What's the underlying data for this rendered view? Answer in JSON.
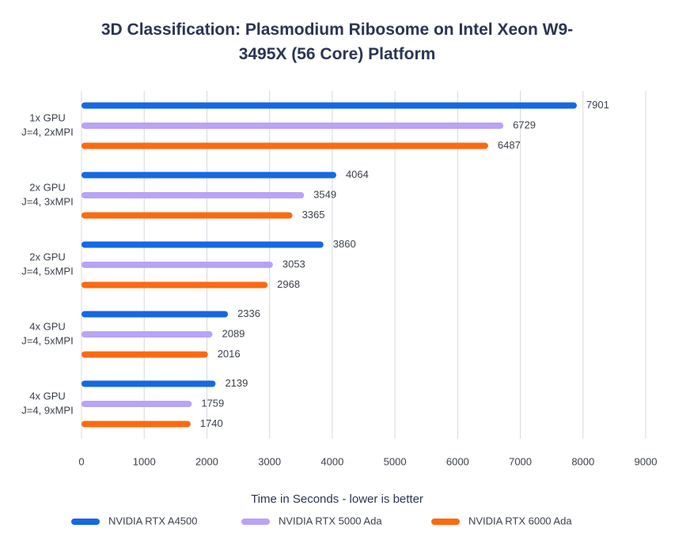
{
  "chart_data": {
    "type": "bar",
    "orientation": "horizontal",
    "title": "3D Classification: Plasmodium Ribosome on Intel Xeon W9-3495X (56 Core) Platform",
    "categories": [
      [
        "1x GPU",
        "J=4, 2xMPI"
      ],
      [
        "2x GPU",
        "J=4, 3xMPI"
      ],
      [
        "2x GPU",
        "J=4, 5xMPI"
      ],
      [
        "4x GPU",
        "J=4, 5xMPI"
      ],
      [
        "4x GPU",
        "J=4, 9xMPI"
      ]
    ],
    "series": [
      {
        "name": "NVIDIA RTX A4500",
        "color": "#1668e3",
        "values": [
          7901,
          4064,
          3860,
          2336,
          2139
        ]
      },
      {
        "name": "NVIDIA RTX 5000 Ada",
        "color": "#b9a3f5",
        "values": [
          6729,
          3549,
          3053,
          2089,
          1759
        ]
      },
      {
        "name": "NVIDIA RTX 6000 Ada",
        "color": "#fc6a10",
        "values": [
          6487,
          3365,
          2968,
          2016,
          1740
        ]
      }
    ],
    "x_label": "Time in Seconds - lower is better",
    "xlim": [
      0,
      9000
    ],
    "xticks": [
      0,
      1000,
      2000,
      3000,
      4000,
      5000,
      6000,
      7000,
      8000,
      9000
    ],
    "grid": true,
    "legend": "bottom"
  }
}
